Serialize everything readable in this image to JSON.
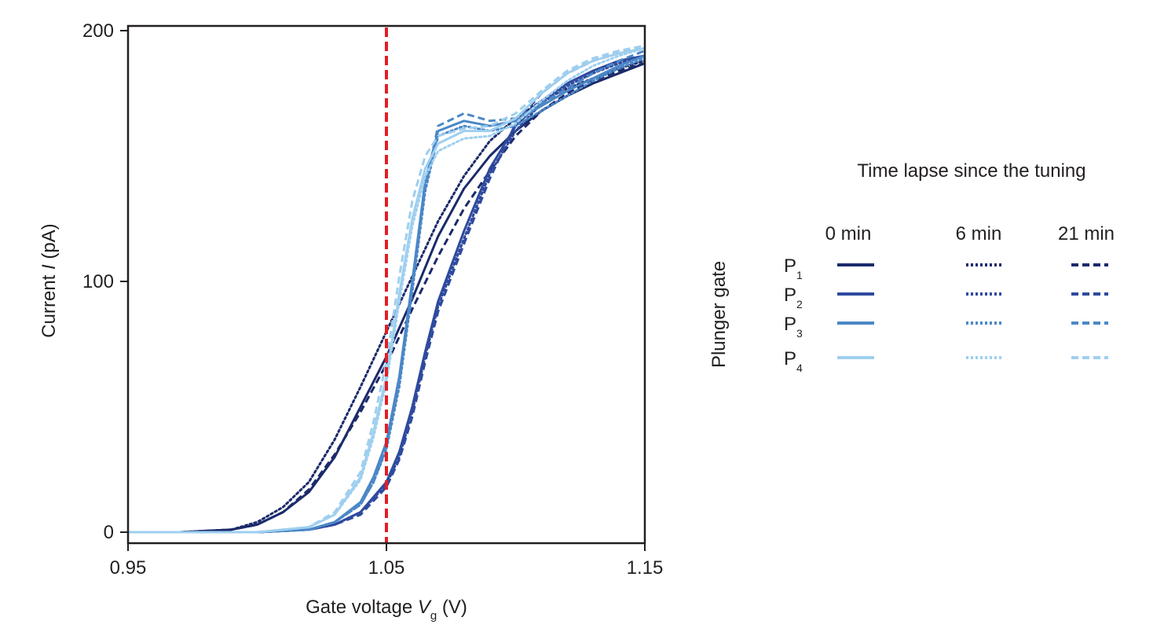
{
  "chart_data": {
    "type": "line",
    "xlabel": {
      "main": "Gate voltage ",
      "var": "V",
      "sub": "g",
      "unit": " (V)"
    },
    "ylabel": {
      "main": "Current ",
      "var": "I",
      "unit": " (pA)"
    },
    "xlim": [
      0.95,
      1.15
    ],
    "ylim": [
      -5,
      200
    ],
    "xticks": [
      {
        "value": 0.95,
        "label": "0.95"
      },
      {
        "value": 1.05,
        "label": "1.05"
      },
      {
        "value": 1.15,
        "label": "1.15"
      }
    ],
    "yticks": [
      {
        "value": 0,
        "label": "0"
      },
      {
        "value": 100,
        "label": "100"
      },
      {
        "value": 200,
        "label": "200"
      }
    ],
    "grid": false,
    "reference_line": {
      "x": 1.05,
      "color": "#e31e24",
      "style": "dashed"
    },
    "legend": {
      "position": "right",
      "title": "Time lapse since the tuning",
      "row_title": "Plunger gate",
      "columns": [
        {
          "label": "0 min",
          "style": "solid"
        },
        {
          "label": "6 min",
          "style": "dotted"
        },
        {
          "label": "21 min",
          "style": "dashed"
        }
      ],
      "rows": [
        {
          "letter": "P",
          "sub": "1",
          "color": "#1b2a6b"
        },
        {
          "letter": "P",
          "sub": "2",
          "color": "#2e4a9e"
        },
        {
          "letter": "P",
          "sub": "3",
          "color": "#4b87c7"
        },
        {
          "letter": "P",
          "sub": "4",
          "color": "#9fcfef"
        }
      ]
    },
    "series": [
      {
        "gate": "P1",
        "time": "0 min",
        "color": "#1b2a6b",
        "style": "solid",
        "x": [
          0.95,
          0.97,
          0.99,
          1.0,
          1.01,
          1.02,
          1.03,
          1.04,
          1.05,
          1.06,
          1.07,
          1.08,
          1.09,
          1.1,
          1.11,
          1.12,
          1.13,
          1.14,
          1.15
        ],
        "y": [
          0,
          0,
          1,
          3,
          8,
          16,
          30,
          50,
          70,
          93,
          118,
          137,
          150,
          160,
          168,
          174,
          179,
          183,
          187
        ]
      },
      {
        "gate": "P1",
        "time": "6 min",
        "color": "#1b2a6b",
        "style": "dotted",
        "x": [
          0.95,
          0.97,
          0.99,
          1.0,
          1.01,
          1.02,
          1.03,
          1.04,
          1.05,
          1.06,
          1.07,
          1.08,
          1.09,
          1.1,
          1.11,
          1.12,
          1.13,
          1.14,
          1.15
        ],
        "y": [
          0,
          0,
          1,
          4,
          10,
          20,
          37,
          58,
          80,
          102,
          124,
          142,
          156,
          165,
          172,
          177,
          181,
          185,
          188
        ]
      },
      {
        "gate": "P1",
        "time": "21 min",
        "color": "#1b2a6b",
        "style": "dashed",
        "x": [
          0.95,
          0.97,
          0.99,
          1.0,
          1.01,
          1.02,
          1.03,
          1.04,
          1.05,
          1.06,
          1.07,
          1.08,
          1.09,
          1.1,
          1.11,
          1.12,
          1.13,
          1.14,
          1.15
        ],
        "y": [
          0,
          0,
          1,
          3,
          8,
          17,
          31,
          48,
          67,
          89,
          110,
          129,
          144,
          158,
          168,
          175,
          180,
          184,
          187
        ]
      },
      {
        "gate": "P2",
        "time": "0 min",
        "color": "#2e4a9e",
        "style": "solid",
        "x": [
          0.95,
          0.98,
          1.0,
          1.02,
          1.03,
          1.04,
          1.05,
          1.055,
          1.06,
          1.065,
          1.07,
          1.08,
          1.09,
          1.1,
          1.11,
          1.12,
          1.13,
          1.14,
          1.15
        ],
        "y": [
          0,
          0,
          0,
          1,
          3,
          8,
          20,
          32,
          50,
          72,
          92,
          120,
          145,
          162,
          172,
          179,
          184,
          188,
          190
        ]
      },
      {
        "gate": "P2",
        "time": "6 min",
        "color": "#2e4a9e",
        "style": "dotted",
        "x": [
          0.95,
          0.98,
          1.0,
          1.02,
          1.03,
          1.04,
          1.05,
          1.055,
          1.06,
          1.065,
          1.07,
          1.08,
          1.09,
          1.1,
          1.11,
          1.12,
          1.13,
          1.14,
          1.15
        ],
        "y": [
          0,
          0,
          0,
          1,
          3,
          8,
          19,
          30,
          48,
          70,
          90,
          117,
          143,
          160,
          171,
          178,
          183,
          187,
          190
        ]
      },
      {
        "gate": "P2",
        "time": "21 min",
        "color": "#2e4a9e",
        "style": "dashed",
        "x": [
          0.95,
          0.98,
          1.0,
          1.02,
          1.03,
          1.04,
          1.05,
          1.055,
          1.06,
          1.065,
          1.07,
          1.08,
          1.09,
          1.1,
          1.11,
          1.12,
          1.13,
          1.14,
          1.15
        ],
        "y": [
          0,
          0,
          0,
          1,
          3,
          7,
          18,
          29,
          46,
          68,
          88,
          115,
          141,
          163,
          175,
          183,
          188,
          191,
          193
        ]
      },
      {
        "gate": "P3",
        "time": "0 min",
        "color": "#4b87c7",
        "style": "solid",
        "x": [
          0.95,
          0.98,
          1.0,
          1.02,
          1.03,
          1.04,
          1.045,
          1.05,
          1.055,
          1.06,
          1.065,
          1.07,
          1.08,
          1.09,
          1.1,
          1.11,
          1.12,
          1.13,
          1.14,
          1.15
        ],
        "y": [
          0,
          0,
          0,
          1,
          4,
          12,
          22,
          36,
          62,
          100,
          140,
          160,
          164,
          162,
          164,
          170,
          176,
          181,
          186,
          190
        ]
      },
      {
        "gate": "P3",
        "time": "6 min",
        "color": "#4b87c7",
        "style": "dotted",
        "x": [
          0.95,
          0.98,
          1.0,
          1.02,
          1.03,
          1.04,
          1.045,
          1.05,
          1.055,
          1.06,
          1.065,
          1.07,
          1.08,
          1.09,
          1.1,
          1.11,
          1.12,
          1.13,
          1.14,
          1.15
        ],
        "y": [
          0,
          0,
          0,
          1,
          4,
          11,
          20,
          33,
          58,
          96,
          136,
          158,
          162,
          160,
          162,
          168,
          174,
          180,
          185,
          189
        ]
      },
      {
        "gate": "P3",
        "time": "21 min",
        "color": "#4b87c7",
        "style": "dashed",
        "x": [
          0.95,
          0.98,
          1.0,
          1.02,
          1.03,
          1.04,
          1.045,
          1.05,
          1.055,
          1.06,
          1.065,
          1.07,
          1.08,
          1.09,
          1.1,
          1.11,
          1.12,
          1.13,
          1.14,
          1.15
        ],
        "y": [
          0,
          0,
          0,
          1,
          4,
          11,
          20,
          34,
          60,
          98,
          138,
          162,
          167,
          164,
          165,
          171,
          177,
          183,
          188,
          192
        ]
      },
      {
        "gate": "P4",
        "time": "0 min",
        "color": "#9fcfef",
        "style": "solid",
        "x": [
          0.95,
          0.98,
          1.0,
          1.02,
          1.03,
          1.04,
          1.045,
          1.05,
          1.055,
          1.06,
          1.065,
          1.07,
          1.08,
          1.09,
          1.1,
          1.11,
          1.12,
          1.13,
          1.14,
          1.15
        ],
        "y": [
          0,
          0,
          0,
          2,
          7,
          22,
          40,
          62,
          95,
          125,
          145,
          155,
          160,
          160,
          165,
          175,
          183,
          188,
          191,
          193
        ]
      },
      {
        "gate": "P4",
        "time": "6 min",
        "color": "#9fcfef",
        "style": "dotted",
        "x": [
          0.95,
          0.98,
          1.0,
          1.02,
          1.03,
          1.04,
          1.045,
          1.05,
          1.055,
          1.06,
          1.065,
          1.07,
          1.08,
          1.09,
          1.1,
          1.11,
          1.12,
          1.13,
          1.14,
          1.15
        ],
        "y": [
          0,
          0,
          0,
          2,
          7,
          21,
          38,
          60,
          92,
          122,
          142,
          152,
          157,
          158,
          163,
          172,
          180,
          186,
          190,
          193
        ]
      },
      {
        "gate": "P4",
        "time": "21 min",
        "color": "#9fcfef",
        "style": "dashed",
        "x": [
          0.95,
          0.98,
          1.0,
          1.02,
          1.03,
          1.04,
          1.045,
          1.05,
          1.055,
          1.06,
          1.065,
          1.07,
          1.08,
          1.09,
          1.1,
          1.11,
          1.12,
          1.13,
          1.14,
          1.15
        ],
        "y": [
          0,
          0,
          0,
          2,
          8,
          24,
          44,
          68,
          102,
          132,
          150,
          158,
          161,
          162,
          167,
          176,
          184,
          189,
          192,
          194
        ]
      }
    ]
  }
}
